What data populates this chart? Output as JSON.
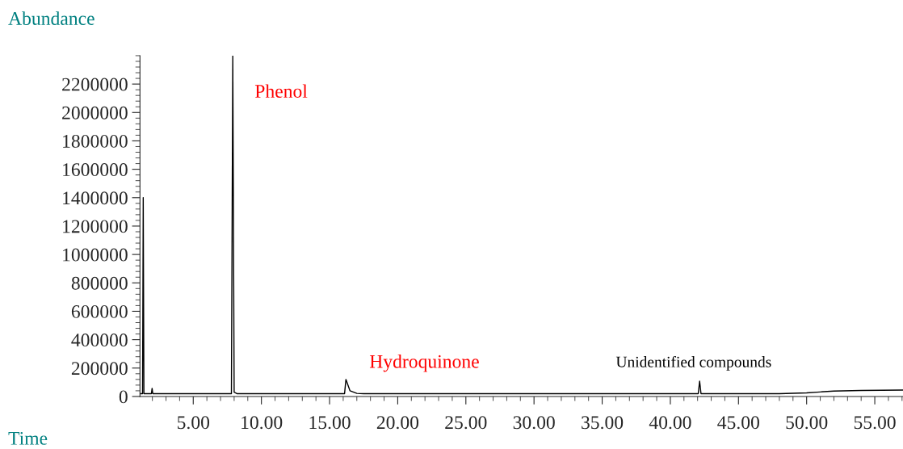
{
  "chart_data": {
    "type": "line",
    "xlabel": "Time",
    "ylabel": "Abundance",
    "x": [
      1.09,
      1.28,
      1.33,
      1.38,
      1.93,
      1.98,
      2.03,
      7.8,
      7.9,
      8.0,
      8.2,
      16.1,
      16.2,
      16.5,
      17.0,
      17.5,
      42.05,
      42.15,
      42.25,
      48.0,
      50.0,
      51.0,
      52.0,
      54.0,
      57.07
    ],
    "series": [
      {
        "color": "#000000",
        "values": [
          20000,
          20000,
          1400000,
          20000,
          20000,
          57000,
          20000,
          20000,
          2400000,
          30000,
          20000,
          20000,
          120000,
          40000,
          22000,
          20000,
          20000,
          108000,
          20000,
          20000,
          25000,
          32000,
          38000,
          42000,
          45000
        ]
      }
    ],
    "xlim": [
      1.09,
      57.07
    ],
    "ylim": [
      0,
      2400000
    ],
    "xticks": [
      {
        "value": 5,
        "label": "5.00"
      },
      {
        "value": 10,
        "label": "10.00"
      },
      {
        "value": 15,
        "label": "15.00"
      },
      {
        "value": 20,
        "label": "20.00"
      },
      {
        "value": 25,
        "label": "25.00"
      },
      {
        "value": 30,
        "label": "30.00"
      },
      {
        "value": 35,
        "label": "35.00"
      },
      {
        "value": 40,
        "label": "40.00"
      },
      {
        "value": 45,
        "label": "45.00"
      },
      {
        "value": 50,
        "label": "50.00"
      },
      {
        "value": 55,
        "label": "55.00"
      }
    ],
    "yticks": [
      0,
      200000,
      400000,
      600000,
      800000,
      1000000,
      1200000,
      1400000,
      1600000,
      1800000,
      2000000,
      2200000
    ],
    "annotations": [
      "Phenol",
      "Hydroquinone",
      "Unidentified compounds"
    ]
  }
}
